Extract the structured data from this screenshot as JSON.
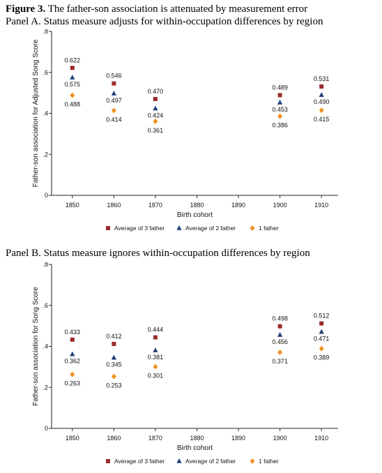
{
  "figure": {
    "label": "Figure 3.",
    "caption": " The father-son association is attenuated by measurement error"
  },
  "chart_data": [
    {
      "type": "scatter",
      "title": "Panel A. Status measure adjusts for within-occupation differences by region",
      "xlabel": "Birth cohort",
      "ylabel": "Father-son association for Adjusted Song Score",
      "x_ticks": [
        1850,
        1860,
        1870,
        1880,
        1890,
        1900,
        1910
      ],
      "y_ticks": [
        0,
        0.2,
        0.4,
        0.6,
        0.8
      ],
      "y_tick_labels": [
        "0",
        ".2",
        ".4",
        ".6",
        ".8"
      ],
      "xlim": [
        1845,
        1914
      ],
      "ylim": [
        0,
        0.8
      ],
      "grid": false,
      "legend_position": "bottom",
      "series": [
        {
          "name": "Average of 3 father",
          "marker": "square",
          "color": "#9b2b2b",
          "x": [
            1850,
            1860,
            1870,
            1900,
            1910
          ],
          "y": [
            0.622,
            0.546,
            0.47,
            0.489,
            0.531
          ],
          "labels": [
            "0.622",
            "0.546",
            "0.470",
            "0.489",
            "0.531"
          ]
        },
        {
          "name": "Average of 2 father",
          "marker": "triangle",
          "color": "#1f3f7a",
          "x": [
            1850,
            1860,
            1870,
            1900,
            1910
          ],
          "y": [
            0.575,
            0.497,
            0.424,
            0.453,
            0.49
          ],
          "labels": [
            "0.575",
            "0.497",
            "0.424",
            "0.453",
            "0.490"
          ]
        },
        {
          "name": "1 father",
          "marker": "diamond",
          "color": "#f0901e",
          "x": [
            1850,
            1860,
            1870,
            1900,
            1910
          ],
          "y": [
            0.488,
            0.414,
            0.361,
            0.386,
            0.415
          ],
          "labels": [
            "0.488",
            "0.414",
            "0.361",
            "0.386",
            "0.415"
          ]
        }
      ]
    },
    {
      "type": "scatter",
      "title": "Panel B. Status measure ignores within-occupation differences by region",
      "xlabel": "Birth cohort",
      "ylabel": "Father-son association for Song Score",
      "x_ticks": [
        1850,
        1860,
        1870,
        1880,
        1890,
        1900,
        1910
      ],
      "y_ticks": [
        0,
        0.2,
        0.4,
        0.6,
        0.8
      ],
      "y_tick_labels": [
        "0",
        ".2",
        ".4",
        ".6",
        ".8"
      ],
      "xlim": [
        1845,
        1914
      ],
      "ylim": [
        0,
        0.8
      ],
      "grid": false,
      "legend_position": "bottom",
      "series": [
        {
          "name": "Average of 3 father",
          "marker": "square",
          "color": "#9b2b2b",
          "x": [
            1850,
            1860,
            1870,
            1900,
            1910
          ],
          "y": [
            0.433,
            0.412,
            0.444,
            0.498,
            0.512
          ],
          "labels": [
            "0.433",
            "0.412",
            "0.444",
            "0.498",
            "0.512"
          ]
        },
        {
          "name": "Average of 2 father",
          "marker": "triangle",
          "color": "#1f3f7a",
          "x": [
            1850,
            1860,
            1870,
            1900,
            1910
          ],
          "y": [
            0.362,
            0.345,
            0.381,
            0.456,
            0.471
          ],
          "labels": [
            "0.362",
            "0.345",
            "0.381",
            "0.456",
            "0.471"
          ]
        },
        {
          "name": "1 father",
          "marker": "diamond",
          "color": "#f0901e",
          "x": [
            1850,
            1860,
            1870,
            1900,
            1910
          ],
          "y": [
            0.263,
            0.253,
            0.301,
            0.371,
            0.389
          ],
          "labels": [
            "0.263",
            "0.253",
            "0.301",
            "0.371",
            "0.389"
          ]
        }
      ]
    }
  ]
}
